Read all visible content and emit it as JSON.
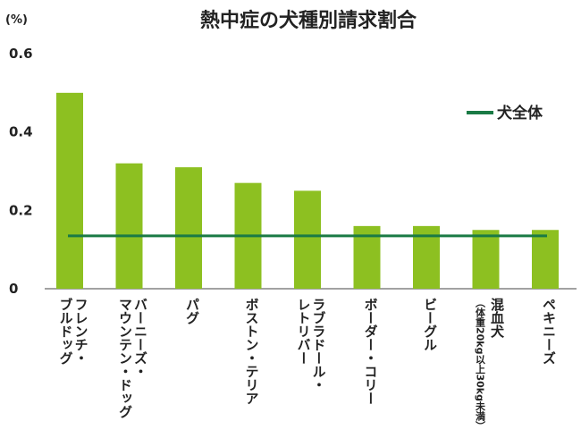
{
  "chart_data": {
    "type": "bar",
    "title": "熱中症の犬種別請求割合",
    "unit_label": "(%)",
    "ylim": [
      0,
      0.6
    ],
    "yticks": [
      "0",
      "0.2",
      "0.4",
      "0.6"
    ],
    "grid": false,
    "legend_position": "top-right",
    "categories": [
      [
        "フレンチ・",
        "ブルドッグ"
      ],
      [
        "バーニーズ・",
        "マウンテン・ドッグ"
      ],
      [
        "パグ"
      ],
      [
        "ボストン・テリア"
      ],
      [
        "ラブラドール・",
        "レトリバー"
      ],
      [
        "ボーダー・コリー"
      ],
      [
        "ビーグル"
      ],
      [
        "混血犬",
        "（体重20kg以上30kg未満）"
      ],
      [
        "ペキニーズ"
      ]
    ],
    "series": [
      {
        "values": [
          0.5,
          0.32,
          0.31,
          0.27,
          0.25,
          0.16,
          0.16,
          0.15,
          0.15
        ]
      }
    ],
    "reference_line": {
      "name": "犬全体",
      "value": 0.135
    },
    "colors": {
      "bar": "#8dc021",
      "line": "#1a7a45"
    }
  }
}
